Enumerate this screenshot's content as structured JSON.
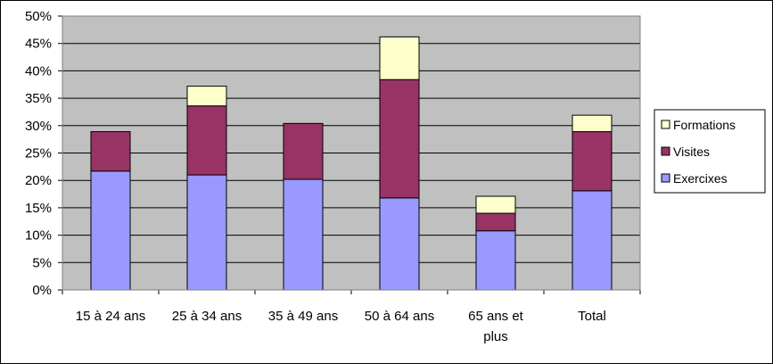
{
  "chart_data": {
    "type": "bar",
    "stacked": true,
    "categories": [
      "15 à 24 ans",
      "25 à 34 ans",
      "35 à 49 ans",
      "50 à 64 ans",
      "65 ans et plus",
      "Total"
    ],
    "category_label_lines": [
      [
        "15 à 24 ans"
      ],
      [
        "25 à 34 ans"
      ],
      [
        "35 à 49 ans"
      ],
      [
        "50 à 64 ans"
      ],
      [
        "65 ans et",
        "plus"
      ],
      [
        "Total"
      ]
    ],
    "series": [
      {
        "name": "Exercixes",
        "color": "#9999ff",
        "values": [
          21.7,
          21.0,
          20.2,
          16.8,
          10.8,
          18.1
        ]
      },
      {
        "name": "Visites",
        "color": "#993366",
        "values": [
          7.2,
          12.6,
          10.2,
          21.6,
          3.2,
          10.8
        ]
      },
      {
        "name": "Formations",
        "color": "#ffffcc",
        "values": [
          0.0,
          3.6,
          0.0,
          7.8,
          3.1,
          3.0
        ]
      }
    ],
    "legend_order": [
      "Formations",
      "Visites",
      "Exercixes"
    ],
    "ylim": [
      0,
      50
    ],
    "yticks": [
      "0%",
      "5%",
      "10%",
      "15%",
      "20%",
      "25%",
      "30%",
      "35%",
      "40%",
      "45%",
      "50%"
    ],
    "grid": true,
    "plot_background": "#c0c0c0",
    "legend_position": "right",
    "title": "",
    "xlabel": "",
    "ylabel": ""
  }
}
